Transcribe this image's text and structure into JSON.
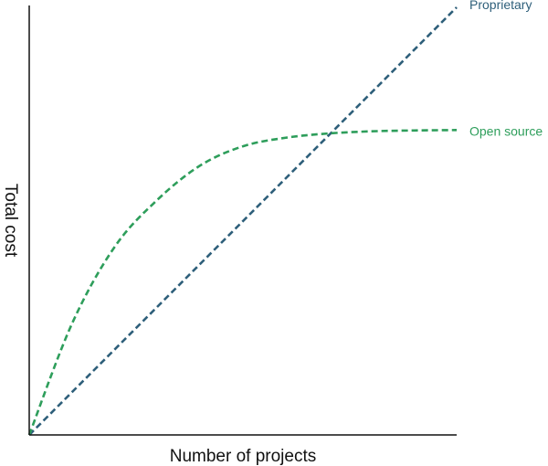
{
  "chart_data": {
    "type": "line",
    "title": "",
    "xlabel": "Number of projects",
    "ylabel": "Total cost",
    "xlim": [
      0,
      10
    ],
    "ylim": [
      0,
      10
    ],
    "grid": false,
    "ticks": false,
    "legend": "direct labels at right end of each line",
    "series": [
      {
        "name": "Proprietary",
        "color": "#2e5f7a",
        "line_style": "dashed",
        "x": [
          0,
          10
        ],
        "y": [
          0,
          10
        ]
      },
      {
        "name": "Open source",
        "color": "#2e9e5b",
        "line_style": "dashed",
        "x": [
          0,
          1,
          2,
          3,
          4,
          5,
          6,
          7,
          8,
          9,
          10
        ],
        "y": [
          0,
          2.6,
          4.4,
          5.5,
          6.3,
          6.75,
          6.95,
          7.05,
          7.1,
          7.12,
          7.13
        ]
      }
    ]
  }
}
